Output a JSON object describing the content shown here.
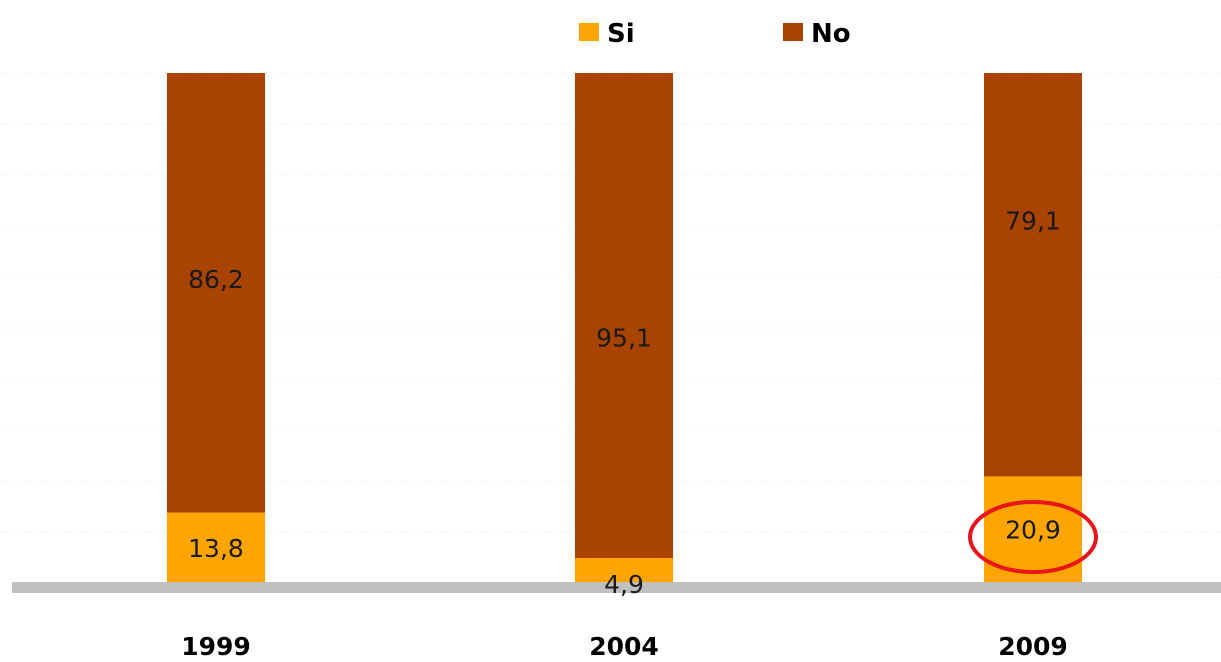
{
  "chart_data": {
    "type": "bar",
    "stacked": true,
    "percent_stacked": true,
    "categories": [
      "1999",
      "2004",
      "2009"
    ],
    "series": [
      {
        "name": "Si",
        "values": [
          13.8,
          4.9,
          20.9
        ],
        "labels": [
          "13,8",
          "4,9",
          "20,9"
        ],
        "color": "#FFA500"
      },
      {
        "name": "No",
        "values": [
          86.2,
          95.1,
          79.1
        ],
        "labels": [
          "86,2",
          "95,1",
          "79,1"
        ],
        "color": "#A94400"
      }
    ],
    "ylim": [
      0,
      100
    ],
    "legend_position": "top-center",
    "grid": true,
    "highlight": {
      "category": "2009",
      "series": "Si",
      "shape": "ellipse",
      "color": "#E8151B"
    },
    "axis_color": "#C0C0C0"
  }
}
